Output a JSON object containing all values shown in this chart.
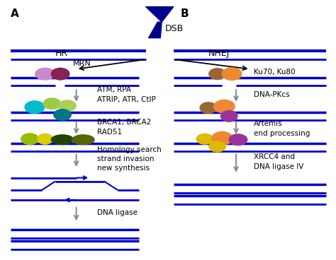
{
  "background_color": "#ffffff",
  "dna_color": "#0000cc",
  "arrow_color": "#777777",
  "dsb_color": "#00008B",
  "label_A": "A",
  "label_B": "B",
  "label_DSB": "DSB",
  "label_HR": "HR",
  "label_MRN": "MRN",
  "label_NHEJ": "NHEJ",
  "label_atm": "ATM, RPA\nATRIP, ATR, CtIP",
  "label_brca": "BRCA1, BRCA2\nRAD51",
  "label_homology": "Homology search\nstrand invasion\nnew synthesis",
  "label_dna_ligase": "DNA ligase",
  "label_ku": "Ku70, Ku80",
  "label_dnapk": "DNA-PKcs",
  "label_artemis": "Artemis\nend processing",
  "label_xrcc4": "XRCC4 and\nDNA ligase IV",
  "colors": {
    "lavender": "#cc88cc",
    "dark_purple_mrn": "#882255",
    "light_green1": "#99cc44",
    "light_green2": "#aad055",
    "cyan": "#00bbcc",
    "teal": "#007788",
    "olive": "#556600",
    "dark_green": "#224400",
    "yellow_green": "#99bb00",
    "yellow": "#ddcc00",
    "brown": "#996633",
    "orange": "#ee8833",
    "purple": "#993399",
    "gold": "#ddbb00"
  }
}
